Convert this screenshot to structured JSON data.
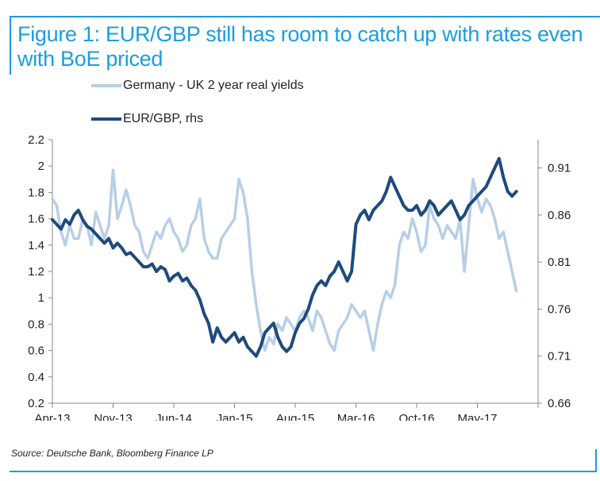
{
  "figure": {
    "title": "Figure 1: EUR/GBP still has room to catch up with rates even with BoE priced",
    "source": "Source: Deutsche Bank, Bloomberg Finance LP",
    "frame_color": "#1a9de0"
  },
  "chart_data": {
    "type": "line",
    "title": "Figure 1: EUR/GBP still has room to catch up with rates even with BoE priced",
    "xlabel": "",
    "ylabel": "",
    "y2label": "",
    "x_ticks": [
      "Apr-13",
      "Nov-13",
      "Jun-14",
      "Jan-15",
      "Aug-15",
      "Mar-16",
      "Oct-16",
      "May-17"
    ],
    "x_range": [
      "Apr-13",
      "Nov-17"
    ],
    "ylim": [
      0.2,
      2.2
    ],
    "y_ticks": [
      "2.2",
      "2",
      "1.8",
      "1.6",
      "1.4",
      "1.2",
      "1",
      "0.8",
      "0.6",
      "0.4",
      "0.2"
    ],
    "y2lim": [
      0.66,
      0.94
    ],
    "y2_ticks": [
      "0.91",
      "0.86",
      "0.81",
      "0.76",
      "0.71",
      "0.66"
    ],
    "grid": false,
    "legend": "top-left",
    "series": [
      {
        "name": "Germany - UK 2 year real yields",
        "axis": "left",
        "color": "#b8cfe6",
        "x": [
          0,
          0.5,
          1,
          1.5,
          2,
          2.5,
          3,
          3.5,
          4,
          4.5,
          5,
          5.5,
          6,
          6.5,
          7,
          7.5,
          8,
          8.5,
          9,
          9.5,
          10,
          10.5,
          11,
          11.5,
          12,
          12.5,
          13,
          13.5,
          14,
          14.5,
          15,
          15.5,
          16,
          16.5,
          17,
          17.5,
          18,
          18.5,
          19,
          19.5,
          20,
          20.5,
          21,
          21.5,
          22,
          22.5,
          23,
          23.5,
          24,
          24.5,
          25,
          25.5,
          26,
          26.5,
          27,
          27.5,
          28,
          28.5,
          29,
          29.5,
          30,
          30.5,
          31,
          31.5,
          32,
          32.5,
          33,
          33.5,
          34,
          34.5,
          35,
          35.5,
          36,
          36.5,
          37,
          37.5,
          38,
          38.5,
          39,
          39.5,
          40,
          40.5,
          41,
          41.5,
          42,
          42.5,
          43,
          43.5,
          44,
          44.5,
          45,
          45.5,
          46,
          46.5,
          47,
          47.5,
          48,
          48.5,
          49,
          49.5,
          50,
          50.5,
          51,
          51.5,
          52,
          52.5,
          53,
          53.5
        ],
        "values": [
          1.75,
          1.7,
          1.5,
          1.4,
          1.55,
          1.45,
          1.45,
          1.6,
          1.55,
          1.4,
          1.65,
          1.55,
          1.45,
          1.55,
          1.97,
          1.6,
          1.7,
          1.82,
          1.7,
          1.55,
          1.5,
          1.35,
          1.3,
          1.4,
          1.5,
          1.45,
          1.55,
          1.6,
          1.5,
          1.45,
          1.35,
          1.4,
          1.55,
          1.6,
          1.75,
          1.45,
          1.35,
          1.3,
          1.3,
          1.45,
          1.5,
          1.55,
          1.6,
          1.9,
          1.8,
          1.6,
          1.2,
          0.95,
          0.75,
          0.6,
          0.7,
          0.65,
          0.8,
          0.75,
          0.85,
          0.8,
          0.75,
          0.85,
          0.9,
          0.85,
          0.75,
          0.9,
          0.85,
          0.75,
          0.65,
          0.6,
          0.75,
          0.8,
          0.85,
          0.95,
          0.9,
          0.85,
          0.9,
          0.75,
          0.6,
          0.8,
          0.95,
          1.05,
          1.0,
          1.1,
          1.4,
          1.5,
          1.45,
          1.6,
          1.5,
          1.35,
          1.4,
          1.7,
          1.6,
          1.55,
          1.45,
          1.55,
          1.5,
          1.45,
          1.6,
          1.2,
          1.55,
          1.9,
          1.75,
          1.65,
          1.75,
          1.7,
          1.6,
          1.45,
          1.5,
          1.35,
          1.2,
          1.05
        ]
      },
      {
        "name": "EUR/GBP, rhs",
        "axis": "right",
        "color": "#1f4a7c",
        "x": [
          0,
          0.5,
          1,
          1.5,
          2,
          2.5,
          3,
          3.5,
          4,
          4.5,
          5,
          5.5,
          6,
          6.5,
          7,
          7.5,
          8,
          8.5,
          9,
          9.5,
          10,
          10.5,
          11,
          11.5,
          12,
          12.5,
          13,
          13.5,
          14,
          14.5,
          15,
          15.5,
          16,
          16.5,
          17,
          17.5,
          18,
          18.5,
          19,
          19.5,
          20,
          20.5,
          21,
          21.5,
          22,
          22.5,
          23,
          23.5,
          24,
          24.5,
          25,
          25.5,
          26,
          26.5,
          27,
          27.5,
          28,
          28.5,
          29,
          29.5,
          30,
          30.5,
          31,
          31.5,
          32,
          32.5,
          33,
          33.5,
          34,
          34.5,
          35,
          35.5,
          36,
          36.5,
          37,
          37.5,
          38,
          38.5,
          39,
          39.5,
          40,
          40.5,
          41,
          41.5,
          42,
          42.5,
          43,
          43.5,
          44,
          44.5,
          45,
          45.5,
          46,
          46.5,
          47,
          47.5,
          48,
          48.5,
          49,
          49.5,
          50,
          50.5,
          51,
          51.5,
          52,
          52.5,
          53,
          53.5
        ],
        "values": [
          0.855,
          0.85,
          0.845,
          0.855,
          0.85,
          0.86,
          0.865,
          0.855,
          0.848,
          0.845,
          0.84,
          0.835,
          0.83,
          0.835,
          0.825,
          0.83,
          0.825,
          0.818,
          0.82,
          0.815,
          0.81,
          0.805,
          0.805,
          0.808,
          0.8,
          0.805,
          0.802,
          0.79,
          0.795,
          0.798,
          0.79,
          0.793,
          0.785,
          0.78,
          0.77,
          0.755,
          0.745,
          0.725,
          0.74,
          0.73,
          0.725,
          0.73,
          0.735,
          0.725,
          0.73,
          0.72,
          0.715,
          0.71,
          0.72,
          0.735,
          0.74,
          0.745,
          0.73,
          0.72,
          0.715,
          0.72,
          0.735,
          0.745,
          0.75,
          0.76,
          0.775,
          0.785,
          0.79,
          0.785,
          0.795,
          0.8,
          0.81,
          0.8,
          0.79,
          0.8,
          0.85,
          0.86,
          0.865,
          0.855,
          0.865,
          0.87,
          0.875,
          0.885,
          0.9,
          0.89,
          0.88,
          0.87,
          0.865,
          0.865,
          0.87,
          0.86,
          0.865,
          0.875,
          0.87,
          0.86,
          0.865,
          0.87,
          0.875,
          0.865,
          0.855,
          0.86,
          0.87,
          0.875,
          0.88,
          0.885,
          0.89,
          0.9,
          0.91,
          0.92,
          0.9,
          0.885,
          0.88,
          0.885
        ]
      }
    ]
  }
}
